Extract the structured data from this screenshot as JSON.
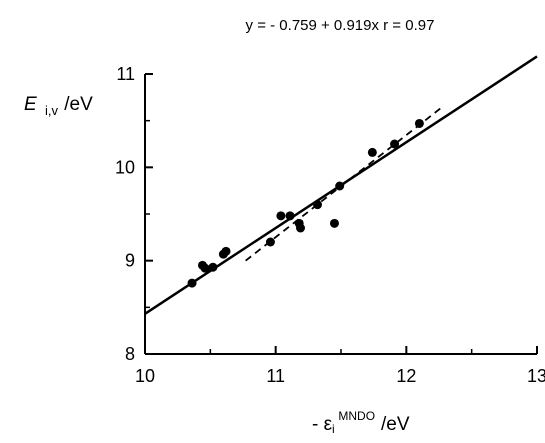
{
  "chart_data": {
    "type": "scatter",
    "title": "y =  - 0.759 + 0.919x   r = 0.97",
    "ylabel": {
      "main": "E",
      "sub": "i,v",
      "unit": "/eV"
    },
    "xlabel": {
      "prefix": "- ε",
      "sub": "i",
      "sup": "MNDO",
      "unit": "/eV"
    },
    "xlim": [
      10,
      13
    ],
    "ylim": [
      8,
      11
    ],
    "xticks": [
      "10",
      "11",
      "12",
      "13"
    ],
    "yticks": [
      "8",
      "9",
      "10",
      "11"
    ],
    "grid": false,
    "points": [
      {
        "x": 10.36,
        "y": 8.76
      },
      {
        "x": 10.44,
        "y": 8.95
      },
      {
        "x": 10.46,
        "y": 8.92
      },
      {
        "x": 10.52,
        "y": 8.93
      },
      {
        "x": 10.6,
        "y": 9.07
      },
      {
        "x": 10.62,
        "y": 9.1
      },
      {
        "x": 10.96,
        "y": 9.2
      },
      {
        "x": 11.04,
        "y": 9.48
      },
      {
        "x": 11.11,
        "y": 9.48
      },
      {
        "x": 11.18,
        "y": 9.4
      },
      {
        "x": 11.19,
        "y": 9.35
      },
      {
        "x": 11.32,
        "y": 9.6
      },
      {
        "x": 11.45,
        "y": 9.4
      },
      {
        "x": 11.49,
        "y": 9.8
      },
      {
        "x": 11.74,
        "y": 10.16
      },
      {
        "x": 11.91,
        "y": 10.25
      },
      {
        "x": 12.1,
        "y": 10.47
      }
    ],
    "fit_line": {
      "intercept": -0.759,
      "slope": 0.919,
      "x_range": [
        10,
        13
      ],
      "style": "solid"
    },
    "dashed_line": {
      "x": [
        10.77,
        12.26
      ],
      "y": [
        9.0,
        10.63
      ],
      "style": "dashed"
    }
  }
}
